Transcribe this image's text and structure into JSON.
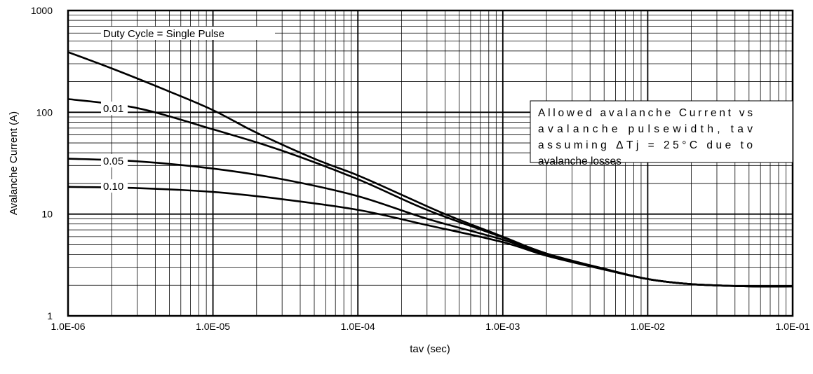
{
  "chart_data": {
    "type": "line",
    "title": "",
    "xlabel": "tav (sec)",
    "ylabel": "Avalanche Current (A)",
    "xscale": "log",
    "yscale": "log",
    "xlim": [
      1e-06,
      0.1
    ],
    "ylim": [
      1,
      1000
    ],
    "grid": true,
    "x_tick_labels": [
      "1.0E-06",
      "1.0E-05",
      "1.0E-04",
      "1.0E-03",
      "1.0E-02",
      "1.0E-01"
    ],
    "y_tick_labels": [
      "1",
      "10",
      "100",
      "1000"
    ],
    "annotation_lines": [
      "Allowed avalanche Current vs",
      "avalanche pulsewidth, tav",
      "assuming ΔTj = 25°C due to",
      "avalanche losses"
    ],
    "series": [
      {
        "name": "Duty Cycle = Single Pulse",
        "x": [
          1e-06,
          2e-06,
          5e-06,
          1e-05,
          2e-05,
          5e-05,
          0.0001,
          0.0002,
          0.0004,
          0.001,
          0.002,
          0.005,
          0.01,
          0.02,
          0.05,
          0.1
        ],
        "y": [
          390,
          270,
          160,
          105,
          63,
          35,
          24,
          15.5,
          10,
          6,
          4.1,
          2.9,
          2.3,
          2.05,
          1.95,
          1.95
        ]
      },
      {
        "name": "0.01",
        "x": [
          1e-06,
          3e-06,
          1e-05,
          3e-05,
          0.0001,
          0.0003,
          0.001,
          0.002,
          0.005,
          0.01,
          0.02,
          0.05,
          0.1
        ],
        "y": [
          135,
          110,
          68,
          42,
          22,
          11,
          5.9,
          4.1,
          2.9,
          2.3,
          2.05,
          1.95,
          1.95
        ]
      },
      {
        "name": "0.05",
        "x": [
          1e-06,
          3e-06,
          1e-05,
          3e-05,
          0.0001,
          0.0003,
          0.001,
          0.002,
          0.005,
          0.01,
          0.02,
          0.05,
          0.1
        ],
        "y": [
          35,
          33,
          28,
          22,
          15,
          9,
          5.6,
          4.0,
          2.9,
          2.3,
          2.05,
          1.95,
          1.95
        ]
      },
      {
        "name": "0.10",
        "x": [
          1e-06,
          3e-06,
          1e-05,
          3e-05,
          0.0001,
          0.0003,
          0.001,
          0.002,
          0.005,
          0.01,
          0.02,
          0.05,
          0.1
        ],
        "y": [
          18.5,
          18,
          16.5,
          14,
          11,
          7.8,
          5.3,
          3.9,
          2.85,
          2.3,
          2.05,
          1.95,
          1.95
        ]
      }
    ],
    "colors": {
      "line": "#000000",
      "grid": "#000000",
      "background": "#ffffff"
    }
  }
}
